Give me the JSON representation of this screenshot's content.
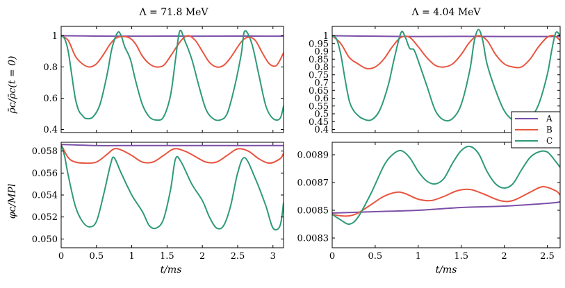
{
  "colors": {
    "A": "#7b4fa8",
    "B": "#e8553f",
    "C": "#2e9a7a"
  },
  "legend": [
    {
      "name": "A",
      "color": "#7b4fa8"
    },
    {
      "name": "B",
      "color": "#e8553f"
    },
    {
      "name": "C",
      "color": "#2e9a7a"
    }
  ],
  "chart_data": [
    {
      "type": "line",
      "panel": "top-left",
      "title": "Λ = 71.8 MeV",
      "ylabel": "ρ̄c/ρ̄c(t = 0)",
      "xlabel": "",
      "xlim": [
        0,
        3.15
      ],
      "ylim": [
        0.38,
        1.06
      ],
      "xticks": [
        0,
        0.5,
        1,
        1.5,
        2,
        2.5,
        3
      ],
      "xticklabels": [],
      "yticks": [
        0.4,
        0.6,
        0.8,
        1.0
      ],
      "yticklabels": [
        "0.4",
        "0.6",
        "0.8",
        "1"
      ],
      "series": [
        {
          "name": "A",
          "x": [
            0,
            0.5,
            1,
            1.5,
            2,
            2.5,
            3,
            3.15
          ],
          "y": [
            1.0,
            0.998,
            0.997,
            0.998,
            0.997,
            0.998,
            0.997,
            0.997
          ]
        },
        {
          "name": "B",
          "x": [
            0,
            0.1,
            0.2,
            0.3,
            0.4,
            0.5,
            0.6,
            0.7,
            0.8,
            0.95,
            1.05,
            1.15,
            1.25,
            1.35,
            1.45,
            1.55,
            1.7,
            1.8,
            1.9,
            2.0,
            2.1,
            2.2,
            2.3,
            2.4,
            2.55,
            2.65,
            2.75,
            2.85,
            2.95,
            3.05,
            3.15
          ],
          "y": [
            1.0,
            0.97,
            0.87,
            0.82,
            0.8,
            0.82,
            0.88,
            0.95,
            0.99,
            0.99,
            0.95,
            0.87,
            0.82,
            0.8,
            0.81,
            0.87,
            0.97,
            1.0,
            0.97,
            0.9,
            0.83,
            0.8,
            0.81,
            0.86,
            0.96,
            0.99,
            0.97,
            0.89,
            0.82,
            0.81,
            0.89
          ]
        },
        {
          "name": "C",
          "x": [
            0,
            0.05,
            0.1,
            0.15,
            0.2,
            0.25,
            0.3,
            0.35,
            0.45,
            0.55,
            0.65,
            0.72,
            0.8,
            0.85,
            0.9,
            0.98,
            1.05,
            1.15,
            1.25,
            1.35,
            1.45,
            1.55,
            1.62,
            1.68,
            1.75,
            1.85,
            1.95,
            2.05,
            2.15,
            2.25,
            2.35,
            2.45,
            2.55,
            2.6,
            2.7,
            2.8,
            2.9,
            3.0,
            3.1,
            3.15
          ],
          "y": [
            1.0,
            0.98,
            0.9,
            0.75,
            0.6,
            0.52,
            0.49,
            0.47,
            0.48,
            0.56,
            0.75,
            0.92,
            1.02,
            1.0,
            0.93,
            0.85,
            0.72,
            0.56,
            0.48,
            0.46,
            0.48,
            0.62,
            0.85,
            1.03,
            0.97,
            0.85,
            0.68,
            0.53,
            0.47,
            0.46,
            0.5,
            0.66,
            0.88,
            1.03,
            0.95,
            0.75,
            0.55,
            0.47,
            0.47,
            0.55
          ]
        }
      ]
    },
    {
      "type": "line",
      "panel": "top-right",
      "title": "Λ = 4.04 MeV",
      "ylabel": "",
      "xlabel": "",
      "xlim": [
        0,
        2.65
      ],
      "ylim": [
        0.38,
        1.06
      ],
      "xticks": [
        0,
        0.5,
        1,
        1.5,
        2,
        2.5
      ],
      "xticklabels": [],
      "yticks": [
        0.4,
        0.45,
        0.5,
        0.55,
        0.6,
        0.65,
        0.7,
        0.75,
        0.8,
        0.85,
        0.9,
        0.95,
        1.0
      ],
      "yticklabels": [
        "0.4",
        "0.45",
        "0.5",
        "0.55",
        "0.6",
        "0.65",
        "0.7",
        "0.75",
        "0.8",
        "0.85",
        "0.9",
        "0.95",
        "1"
      ],
      "series": [
        {
          "name": "A",
          "x": [
            0,
            0.5,
            1,
            1.5,
            2,
            2.5,
            2.65
          ],
          "y": [
            1.0,
            0.997,
            0.995,
            0.996,
            0.995,
            0.995,
            0.996
          ]
        },
        {
          "name": "B",
          "x": [
            0,
            0.1,
            0.2,
            0.3,
            0.4,
            0.5,
            0.6,
            0.7,
            0.8,
            0.9,
            1.0,
            1.1,
            1.2,
            1.3,
            1.4,
            1.5,
            1.6,
            1.7,
            1.8,
            1.9,
            2.0,
            2.1,
            2.2,
            2.3,
            2.4,
            2.5,
            2.58,
            2.65
          ],
          "y": [
            1.0,
            0.95,
            0.86,
            0.82,
            0.79,
            0.8,
            0.85,
            0.93,
            0.99,
            0.99,
            0.93,
            0.86,
            0.81,
            0.8,
            0.82,
            0.88,
            0.96,
            1.0,
            0.97,
            0.88,
            0.82,
            0.8,
            0.8,
            0.85,
            0.93,
            0.99,
            1.0,
            0.97
          ]
        },
        {
          "name": "C",
          "x": [
            0,
            0.05,
            0.1,
            0.15,
            0.2,
            0.25,
            0.3,
            0.35,
            0.45,
            0.55,
            0.65,
            0.72,
            0.8,
            0.85,
            0.9,
            0.95,
            1.0,
            1.1,
            1.2,
            1.3,
            1.4,
            1.5,
            1.6,
            1.65,
            1.7,
            1.75,
            1.8,
            1.9,
            2.0,
            2.1,
            2.2,
            2.3,
            2.4,
            2.5,
            2.55,
            2.6,
            2.65
          ],
          "y": [
            1.0,
            0.98,
            0.88,
            0.72,
            0.58,
            0.52,
            0.49,
            0.47,
            0.46,
            0.52,
            0.68,
            0.85,
            1.02,
            0.99,
            0.92,
            0.91,
            0.84,
            0.68,
            0.52,
            0.46,
            0.47,
            0.56,
            0.78,
            0.96,
            1.04,
            0.97,
            0.82,
            0.65,
            0.52,
            0.46,
            0.45,
            0.47,
            0.56,
            0.75,
            0.9,
            1.02,
            1.0
          ]
        }
      ]
    },
    {
      "type": "line",
      "panel": "bottom-left",
      "title": "",
      "ylabel": "φc/MPl",
      "xlabel": "t/ms",
      "xlim": [
        0,
        3.15
      ],
      "ylim": [
        0.0492,
        0.0588
      ],
      "xticks": [
        0,
        0.5,
        1,
        1.5,
        2,
        2.5,
        3
      ],
      "xticklabels": [
        "0",
        "0.5",
        "1",
        "1.5",
        "2",
        "2.5",
        "3"
      ],
      "yticks": [
        0.05,
        0.052,
        0.054,
        0.056,
        0.058
      ],
      "yticklabels": [
        "0.050",
        "0.052",
        "0.054",
        "0.056",
        "0.058"
      ],
      "series": [
        {
          "name": "A",
          "x": [
            0,
            0.5,
            1,
            1.5,
            2,
            2.5,
            3,
            3.15
          ],
          "y": [
            0.0586,
            0.0585,
            0.0585,
            0.0585,
            0.0585,
            0.0585,
            0.0585,
            0.0585
          ]
        },
        {
          "name": "B",
          "x": [
            0,
            0.1,
            0.2,
            0.35,
            0.5,
            0.65,
            0.75,
            0.85,
            1.0,
            1.15,
            1.3,
            1.45,
            1.6,
            1.75,
            1.9,
            2.05,
            2.2,
            2.35,
            2.5,
            2.65,
            2.8,
            2.95,
            3.1,
            3.15
          ],
          "y": [
            0.0586,
            0.0574,
            0.057,
            0.0569,
            0.057,
            0.0577,
            0.0582,
            0.0581,
            0.0576,
            0.057,
            0.057,
            0.0576,
            0.0582,
            0.058,
            0.0575,
            0.057,
            0.057,
            0.0576,
            0.0582,
            0.058,
            0.0573,
            0.0569,
            0.0573,
            0.0578
          ]
        },
        {
          "name": "C",
          "x": [
            0,
            0.05,
            0.1,
            0.2,
            0.3,
            0.4,
            0.5,
            0.6,
            0.7,
            0.75,
            0.85,
            1.0,
            1.15,
            1.25,
            1.35,
            1.45,
            1.55,
            1.62,
            1.7,
            1.85,
            2.0,
            2.1,
            2.2,
            2.3,
            2.4,
            2.5,
            2.6,
            2.75,
            2.9,
            3.0,
            3.1,
            3.15
          ],
          "y": [
            0.0586,
            0.0575,
            0.0558,
            0.053,
            0.0516,
            0.0511,
            0.0516,
            0.054,
            0.0568,
            0.0574,
            0.056,
            0.054,
            0.0525,
            0.0512,
            0.051,
            0.0518,
            0.0545,
            0.0573,
            0.057,
            0.055,
            0.0535,
            0.052,
            0.051,
            0.0512,
            0.053,
            0.056,
            0.0574,
            0.0555,
            0.053,
            0.051,
            0.0512,
            0.0533
          ]
        }
      ]
    },
    {
      "type": "line",
      "panel": "bottom-right",
      "title": "",
      "ylabel": "",
      "xlabel": "t/ms",
      "xlim": [
        0,
        2.65
      ],
      "ylim": [
        0.00823,
        0.00899
      ],
      "xticks": [
        0,
        0.5,
        1,
        1.5,
        2,
        2.5
      ],
      "xticklabels": [
        "0",
        "0.5",
        "1",
        "1.5",
        "2",
        "2.5"
      ],
      "yticks": [
        0.0083,
        0.0085,
        0.0087,
        0.0089
      ],
      "yticklabels": [
        "0.0083",
        "0.0085",
        "0.0087",
        "0.0089"
      ],
      "series": [
        {
          "name": "A",
          "x": [
            0,
            0.5,
            1,
            1.5,
            2,
            2.5,
            2.65
          ],
          "y": [
            0.00848,
            0.00849,
            0.0085,
            0.00852,
            0.00853,
            0.00855,
            0.00856
          ]
        },
        {
          "name": "B",
          "x": [
            0,
            0.1,
            0.2,
            0.3,
            0.45,
            0.6,
            0.75,
            0.85,
            1.0,
            1.15,
            1.3,
            1.45,
            1.6,
            1.75,
            1.95,
            2.1,
            2.3,
            2.45,
            2.6,
            2.65
          ],
          "y": [
            0.00847,
            0.00846,
            0.00846,
            0.00848,
            0.00854,
            0.0086,
            0.00863,
            0.00862,
            0.00858,
            0.00857,
            0.0086,
            0.00864,
            0.00865,
            0.00862,
            0.00857,
            0.00857,
            0.00863,
            0.00867,
            0.00864,
            0.00861
          ]
        },
        {
          "name": "C",
          "x": [
            0,
            0.1,
            0.2,
            0.3,
            0.45,
            0.6,
            0.7,
            0.8,
            0.9,
            1.0,
            1.1,
            1.2,
            1.3,
            1.4,
            1.5,
            1.6,
            1.7,
            1.8,
            1.9,
            2.0,
            2.1,
            2.2,
            2.3,
            2.4,
            2.5,
            2.6,
            2.65
          ],
          "y": [
            0.00847,
            0.00843,
            0.0084,
            0.00845,
            0.00862,
            0.00882,
            0.0089,
            0.00893,
            0.00888,
            0.00878,
            0.00871,
            0.00869,
            0.00873,
            0.00884,
            0.00893,
            0.00896,
            0.00891,
            0.00878,
            0.00869,
            0.00866,
            0.00869,
            0.00879,
            0.00888,
            0.00892,
            0.00892,
            0.00885,
            0.00881
          ]
        }
      ]
    }
  ]
}
